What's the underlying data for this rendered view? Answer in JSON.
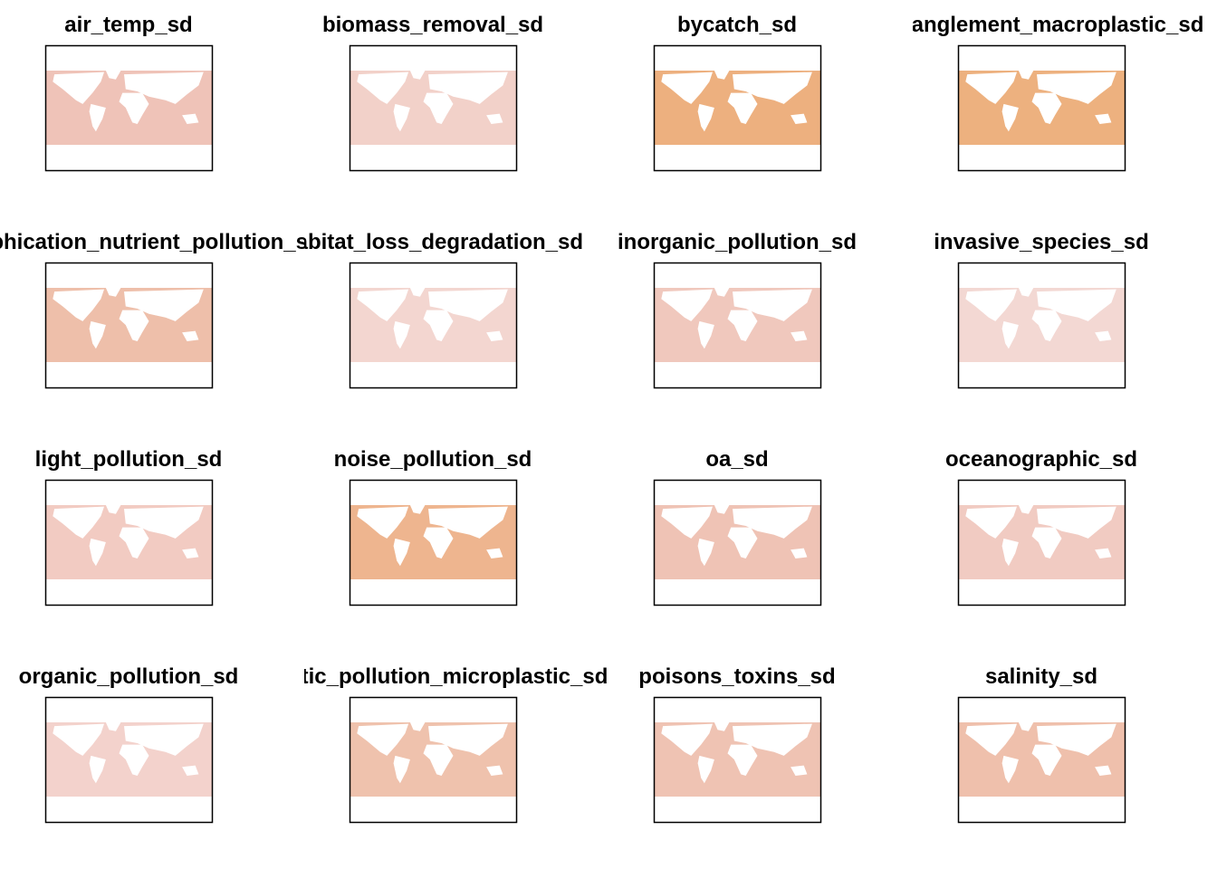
{
  "panels": [
    {
      "title": "air_temp_sd",
      "color": "#efc3b8"
    },
    {
      "title": "biomass_removal_sd",
      "color": "#f2d1c9"
    },
    {
      "title": "bycatch_sd",
      "color": "#edb07f"
    },
    {
      "title": "entanglement_macroplastic_sd",
      "color": "#edb17f"
    },
    {
      "title": "eutrophication_nutrient_pollution_sd",
      "color": "#eebfaa"
    },
    {
      "title": "habitat_loss_degradation_sd",
      "color": "#f3d6d0"
    },
    {
      "title": "inorganic_pollution_sd",
      "color": "#f0c8bd"
    },
    {
      "title": "invasive_species_sd",
      "color": "#f3d8d3"
    },
    {
      "title": "light_pollution_sd",
      "color": "#f2cbc2"
    },
    {
      "title": "noise_pollution_sd",
      "color": "#eeb58f"
    },
    {
      "title": "oa_sd",
      "color": "#efc3b5"
    },
    {
      "title": "oceanographic_sd",
      "color": "#f1cbc2"
    },
    {
      "title": "organic_pollution_sd",
      "color": "#f3d2cc"
    },
    {
      "title": "plastic_pollution_microplastic_sd",
      "color": "#efc2ad"
    },
    {
      "title": "poisons_toxins_sd",
      "color": "#efc3b3"
    },
    {
      "title": "salinity_sd",
      "color": "#efc0ac"
    }
  ]
}
